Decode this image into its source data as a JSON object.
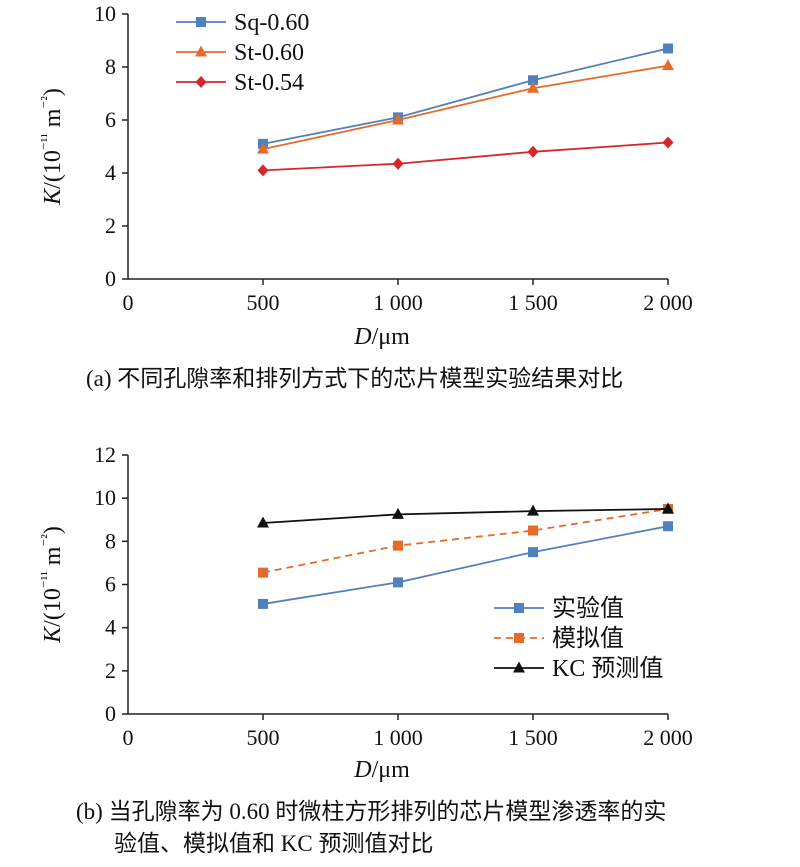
{
  "chart_data": [
    {
      "type": "line",
      "caption": "(a) 不同孔隙率和排列方式下的芯片模型实验结果对比",
      "xlabel": "D/μm",
      "ylabel": "K/(10⁻¹¹ m⁻²)",
      "x": [
        500,
        1000,
        1500,
        2000
      ],
      "xticks": [
        0,
        500,
        1000,
        1500,
        2000
      ],
      "xtick_labels": [
        "0",
        "500",
        "1 000",
        "1 500",
        "2 000"
      ],
      "yticks": [
        0,
        2,
        4,
        6,
        8,
        10
      ],
      "xlim": [
        0,
        2000
      ],
      "ylim": [
        0,
        10
      ],
      "grid": false,
      "legend_position": "top-left",
      "series": [
        {
          "name": "Sq-0.60",
          "values": [
            5.1,
            6.1,
            7.5,
            8.7
          ],
          "color": "#4f81bd",
          "marker": "square",
          "dash": "solid"
        },
        {
          "name": "St-0.60",
          "values": [
            4.9,
            6.0,
            7.2,
            8.05
          ],
          "color": "#e46c2a",
          "marker": "triangle",
          "dash": "solid"
        },
        {
          "name": "St-0.54",
          "values": [
            4.1,
            4.35,
            4.8,
            5.15
          ],
          "color": "#d62728",
          "marker": "diamond",
          "dash": "solid"
        }
      ]
    },
    {
      "type": "line",
      "caption": "(b) 当孔隙率为 0.60 时微柱方形排列的芯片模型渗透率的实验值、模拟值和 KC 预测值对比",
      "caption_lines": [
        "(b) 当孔隙率为 0.60 时微柱方形排列的芯片模型渗透率的实",
        "验值、模拟值和 KC 预测值对比"
      ],
      "xlabel": "D/μm",
      "ylabel": "K/(10⁻¹¹ m⁻²)",
      "x": [
        500,
        1000,
        1500,
        2000
      ],
      "xticks": [
        0,
        500,
        1000,
        1500,
        2000
      ],
      "xtick_labels": [
        "0",
        "500",
        "1 000",
        "1 500",
        "2 000"
      ],
      "yticks": [
        0,
        2,
        4,
        6,
        8,
        10,
        12
      ],
      "xlim": [
        0,
        2000
      ],
      "ylim": [
        0,
        12
      ],
      "grid": false,
      "legend_position": "bottom-right",
      "series": [
        {
          "name": "实验值",
          "values": [
            5.1,
            6.1,
            7.5,
            8.7
          ],
          "color": "#4f81bd",
          "marker": "square",
          "dash": "solid"
        },
        {
          "name": "模拟值",
          "values": [
            6.55,
            7.8,
            8.5,
            9.5
          ],
          "color": "#e46c2a",
          "marker": "square",
          "dash": "dashed"
        },
        {
          "name": "KC 预测值",
          "values": [
            8.85,
            9.25,
            9.4,
            9.5
          ],
          "color": "#111111",
          "marker": "triangle",
          "dash": "solid"
        }
      ]
    }
  ]
}
